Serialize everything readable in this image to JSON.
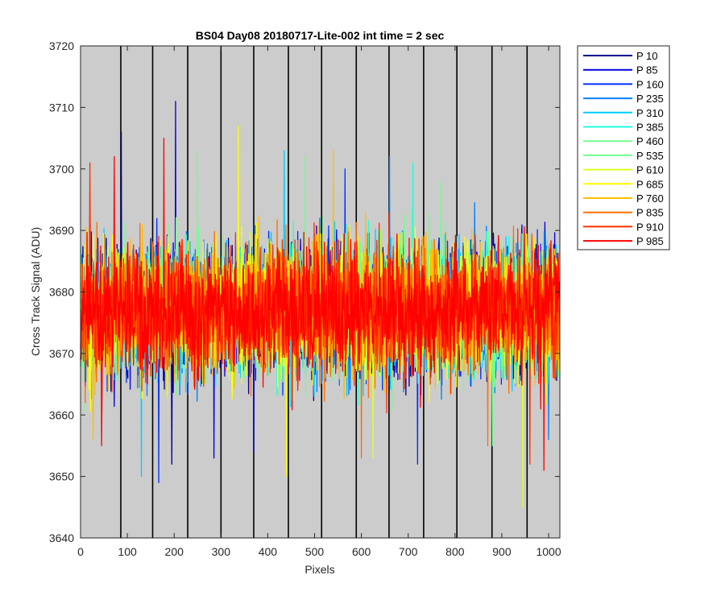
{
  "chart_data": {
    "type": "line",
    "title": "BS04 Day08 20180717-Lite-002 int time = 2 sec",
    "xlabel": "Pixels",
    "ylabel": "Cross Track Signal (ADU)",
    "xlim": [
      0,
      1024
    ],
    "ylim": [
      3640,
      3720
    ],
    "xticks": [
      0,
      100,
      200,
      300,
      400,
      500,
      600,
      700,
      800,
      900,
      1000
    ],
    "yticks": [
      3640,
      3650,
      3660,
      3670,
      3680,
      3690,
      3700,
      3710,
      3720
    ],
    "x_points": 1024,
    "plot_background": "#cccccc",
    "legend_position": "outside-right",
    "separators": [
      86,
      154,
      229,
      300,
      370,
      444,
      515,
      589,
      659,
      733,
      804,
      879,
      954
    ],
    "noise_band": {
      "mean": 3677,
      "min": 3645,
      "max": 3711
    },
    "series": [
      {
        "name": "P 10",
        "color": "#00008f",
        "spikes": [
          {
            "x": 87,
            "y": 3706
          },
          {
            "x": 195,
            "y": 3652
          }
        ]
      },
      {
        "name": "P 85",
        "color": "#0000df",
        "spikes": [
          {
            "x": 203,
            "y": 3711
          },
          {
            "x": 285,
            "y": 3653
          },
          {
            "x": 370,
            "y": 3654
          }
        ]
      },
      {
        "name": "P 160",
        "color": "#0030ff",
        "spikes": [
          {
            "x": 167,
            "y": 3649
          },
          {
            "x": 720,
            "y": 3652
          },
          {
            "x": 565,
            "y": 3700
          }
        ]
      },
      {
        "name": "P 235",
        "color": "#0080ff",
        "spikes": [
          {
            "x": 660,
            "y": 3702
          },
          {
            "x": 1000,
            "y": 3656
          }
        ]
      },
      {
        "name": "P 310",
        "color": "#00cfff",
        "spikes": [
          {
            "x": 130,
            "y": 3650
          },
          {
            "x": 435,
            "y": 3703
          }
        ]
      },
      {
        "name": "P 385",
        "color": "#20ffdf",
        "spikes": [
          {
            "x": 710,
            "y": 3701
          }
        ]
      },
      {
        "name": "P 460",
        "color": "#70ff8f",
        "spikes": [
          {
            "x": 250,
            "y": 3703
          },
          {
            "x": 480,
            "y": 3702
          }
        ]
      },
      {
        "name": "P 535",
        "color": "#70ff8f",
        "spikes": [
          {
            "x": 770,
            "y": 3698
          },
          {
            "x": 880,
            "y": 3655
          }
        ]
      },
      {
        "name": "P 610",
        "color": "#dfff20",
        "spikes": [
          {
            "x": 945,
            "y": 3645
          },
          {
            "x": 625,
            "y": 3653
          }
        ]
      },
      {
        "name": "P 685",
        "color": "#ffff00",
        "spikes": [
          {
            "x": 337,
            "y": 3707
          },
          {
            "x": 440,
            "y": 3650
          }
        ]
      },
      {
        "name": "P 760",
        "color": "#ffbf00",
        "spikes": [
          {
            "x": 27,
            "y": 3656
          },
          {
            "x": 540,
            "y": 3703
          }
        ]
      },
      {
        "name": "P 835",
        "color": "#ff7000",
        "spikes": [
          {
            "x": 600,
            "y": 3653
          },
          {
            "x": 870,
            "y": 3655
          }
        ]
      },
      {
        "name": "P 910",
        "color": "#ff3000",
        "spikes": [
          {
            "x": 20,
            "y": 3701
          },
          {
            "x": 960,
            "y": 3652
          }
        ]
      },
      {
        "name": "P 985",
        "color": "#ff0000",
        "spikes": [
          {
            "x": 72,
            "y": 3702
          },
          {
            "x": 178,
            "y": 3705
          },
          {
            "x": 990,
            "y": 3651
          },
          {
            "x": 45,
            "y": 3655
          }
        ]
      }
    ]
  }
}
